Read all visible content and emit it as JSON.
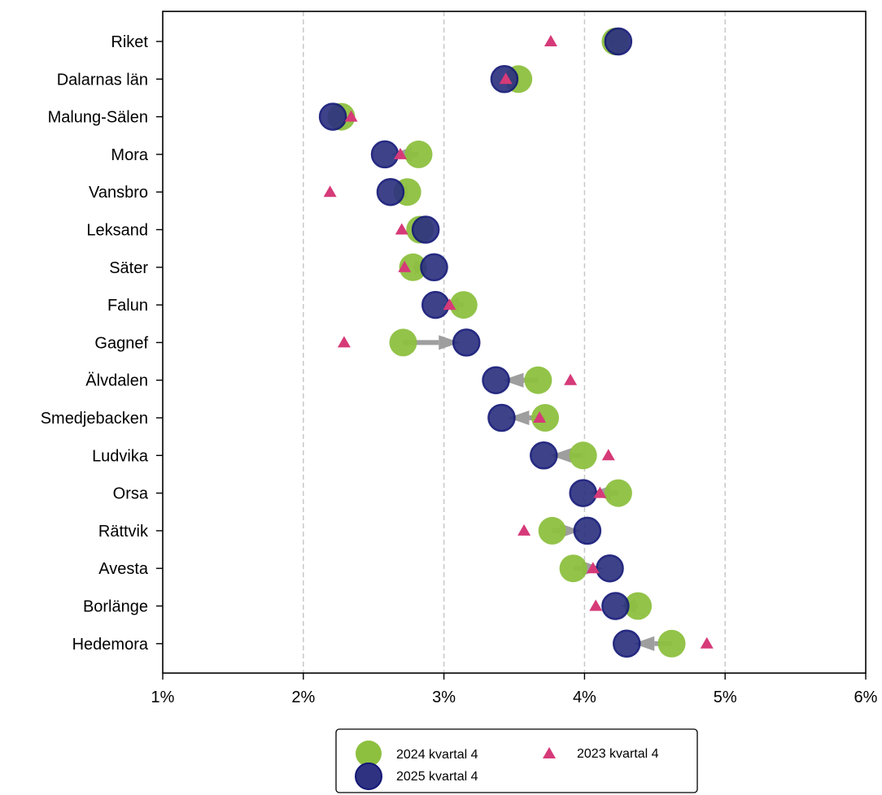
{
  "chart_data": {
    "type": "dumbbell",
    "categories": [
      "Riket",
      "Dalarnas län",
      "Malung-Sälen",
      "Mora",
      "Vansbro",
      "Leksand",
      "Säter",
      "Falun",
      "Gagnef",
      "Älvdalen",
      "Smedjebacken",
      "Ludvika",
      "Orsa",
      "Rättvik",
      "Avesta",
      "Borlänge",
      "Hedemora"
    ],
    "x_ticks": [
      "1%",
      "2%",
      "3%",
      "4%",
      "5%",
      "6%"
    ],
    "xlim": [
      1,
      6
    ],
    "grid": "vertical dashed",
    "legend_position": "bottom-center",
    "series": [
      {
        "name": "2024 kvartal 4",
        "color": "#8dc03f",
        "marker": "circle",
        "values": [
          4.22,
          3.53,
          2.27,
          2.82,
          2.74,
          2.83,
          2.78,
          3.14,
          2.71,
          3.67,
          3.72,
          3.99,
          4.24,
          3.77,
          3.92,
          4.38,
          4.62
        ]
      },
      {
        "name": "2025 kvartal 4",
        "color": "#2e3280",
        "marker": "circle",
        "values": [
          4.24,
          3.43,
          2.21,
          2.58,
          2.62,
          2.87,
          2.93,
          2.94,
          3.16,
          3.37,
          3.41,
          3.71,
          3.99,
          4.02,
          4.18,
          4.22,
          4.3
        ]
      },
      {
        "name": "2023 kvartal 4",
        "color": "#d63a78",
        "marker": "triangle",
        "values": [
          3.76,
          3.44,
          2.34,
          2.69,
          2.19,
          2.7,
          2.72,
          3.04,
          2.29,
          3.9,
          3.68,
          4.17,
          4.11,
          3.57,
          4.06,
          4.08,
          4.87
        ]
      }
    ],
    "arrow_color": "#9e9e9e"
  }
}
